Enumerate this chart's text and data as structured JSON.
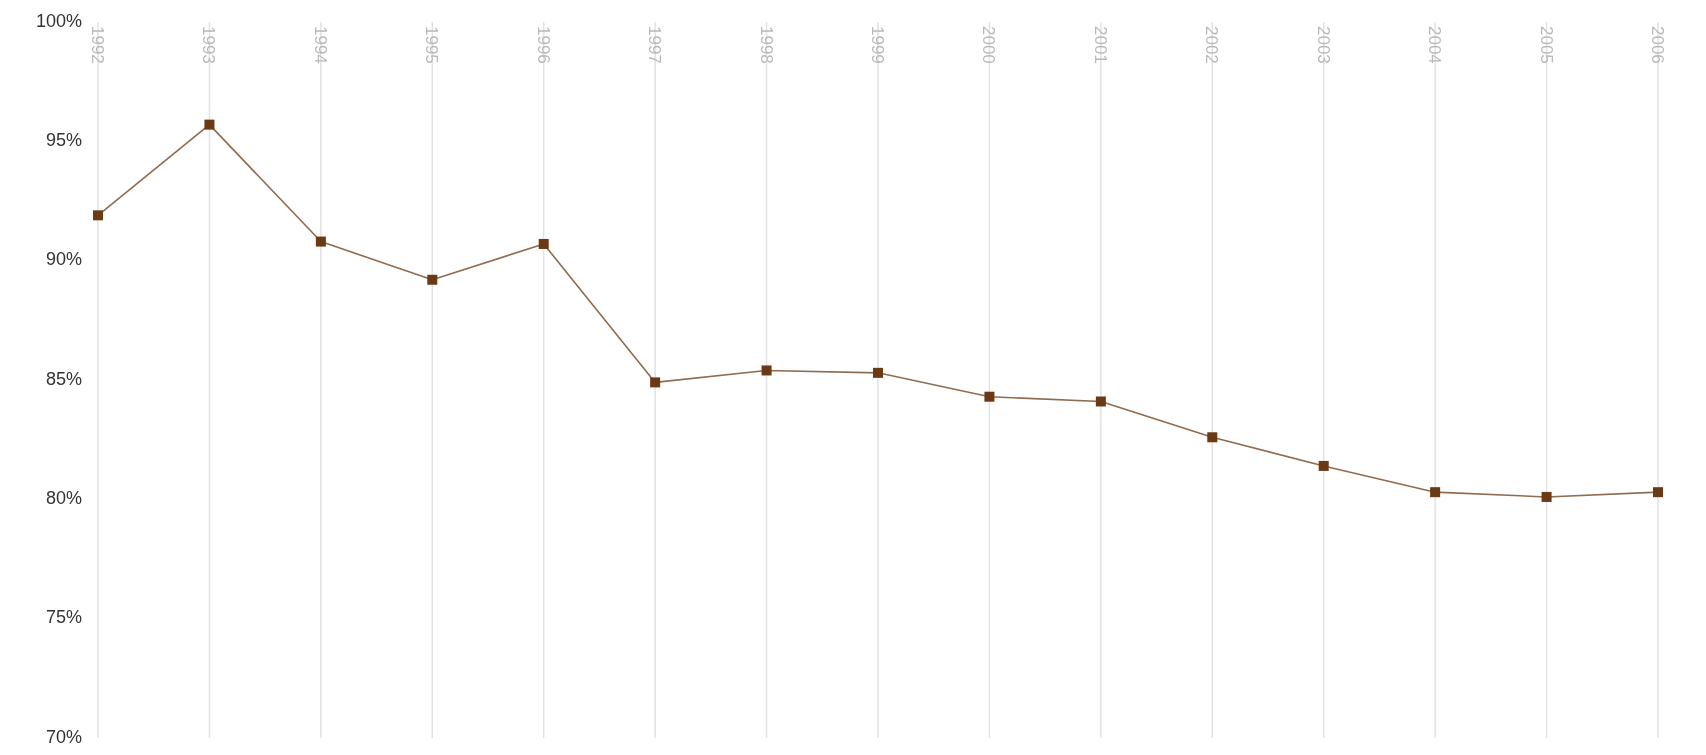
{
  "chart_data": {
    "type": "line",
    "categories": [
      "1992",
      "1993",
      "1994",
      "1995",
      "1996",
      "1997",
      "1998",
      "1999",
      "2000",
      "2001",
      "2002",
      "2003",
      "2004",
      "2005",
      "2006"
    ],
    "series": [
      {
        "color": "#6b3a14",
        "values": [
          91.9,
          95.7,
          90.8,
          89.2,
          90.7,
          84.9,
          85.4,
          85.3,
          84.3,
          84.1,
          82.6,
          81.4,
          80.3,
          80.1,
          80.3
        ]
      }
    ],
    "ylim": [
      70,
      100
    ],
    "yticks": [
      {
        "value": 70,
        "label": "70%"
      },
      {
        "value": 75,
        "label": "75%"
      },
      {
        "value": 80,
        "label": "80%"
      },
      {
        "value": 85,
        "label": "85%"
      },
      {
        "value": 90,
        "label": "90%"
      },
      {
        "value": 95,
        "label": "95%"
      },
      {
        "value": 100,
        "label": "100%"
      }
    ],
    "grid": "x",
    "marker": "square",
    "line_style": "solid"
  }
}
